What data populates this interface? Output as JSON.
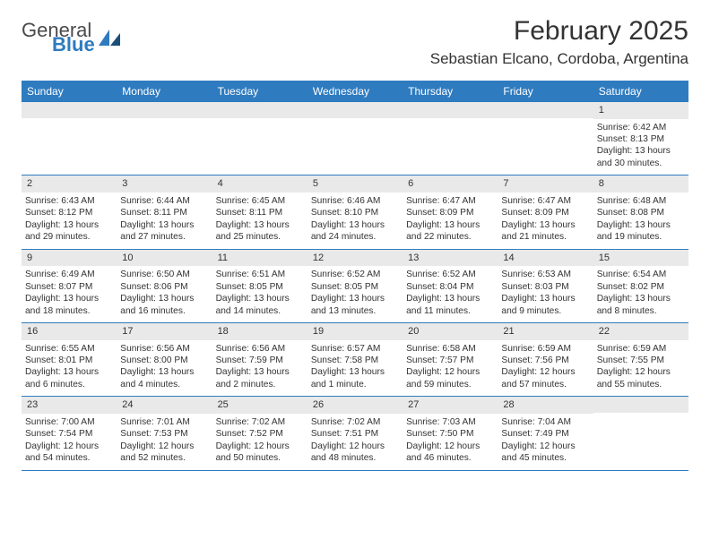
{
  "brand": {
    "general": "General",
    "blue": "Blue"
  },
  "title": "February 2025",
  "location": "Sebastian Elcano, Cordoba, Argentina",
  "colors": {
    "header_bg": "#2f7bbf",
    "header_text": "#ffffff",
    "daynum_bg": "#e9e9e9",
    "rule": "#2f7bbf",
    "text": "#333333",
    "page_bg": "#ffffff"
  },
  "day_names": [
    "Sunday",
    "Monday",
    "Tuesday",
    "Wednesday",
    "Thursday",
    "Friday",
    "Saturday"
  ],
  "weeks": [
    [
      null,
      null,
      null,
      null,
      null,
      null,
      {
        "n": "1",
        "sr": "Sunrise: 6:42 AM",
        "ss": "Sunset: 8:13 PM",
        "dl": "Daylight: 13 hours and 30 minutes."
      }
    ],
    [
      {
        "n": "2",
        "sr": "Sunrise: 6:43 AM",
        "ss": "Sunset: 8:12 PM",
        "dl": "Daylight: 13 hours and 29 minutes."
      },
      {
        "n": "3",
        "sr": "Sunrise: 6:44 AM",
        "ss": "Sunset: 8:11 PM",
        "dl": "Daylight: 13 hours and 27 minutes."
      },
      {
        "n": "4",
        "sr": "Sunrise: 6:45 AM",
        "ss": "Sunset: 8:11 PM",
        "dl": "Daylight: 13 hours and 25 minutes."
      },
      {
        "n": "5",
        "sr": "Sunrise: 6:46 AM",
        "ss": "Sunset: 8:10 PM",
        "dl": "Daylight: 13 hours and 24 minutes."
      },
      {
        "n": "6",
        "sr": "Sunrise: 6:47 AM",
        "ss": "Sunset: 8:09 PM",
        "dl": "Daylight: 13 hours and 22 minutes."
      },
      {
        "n": "7",
        "sr": "Sunrise: 6:47 AM",
        "ss": "Sunset: 8:09 PM",
        "dl": "Daylight: 13 hours and 21 minutes."
      },
      {
        "n": "8",
        "sr": "Sunrise: 6:48 AM",
        "ss": "Sunset: 8:08 PM",
        "dl": "Daylight: 13 hours and 19 minutes."
      }
    ],
    [
      {
        "n": "9",
        "sr": "Sunrise: 6:49 AM",
        "ss": "Sunset: 8:07 PM",
        "dl": "Daylight: 13 hours and 18 minutes."
      },
      {
        "n": "10",
        "sr": "Sunrise: 6:50 AM",
        "ss": "Sunset: 8:06 PM",
        "dl": "Daylight: 13 hours and 16 minutes."
      },
      {
        "n": "11",
        "sr": "Sunrise: 6:51 AM",
        "ss": "Sunset: 8:05 PM",
        "dl": "Daylight: 13 hours and 14 minutes."
      },
      {
        "n": "12",
        "sr": "Sunrise: 6:52 AM",
        "ss": "Sunset: 8:05 PM",
        "dl": "Daylight: 13 hours and 13 minutes."
      },
      {
        "n": "13",
        "sr": "Sunrise: 6:52 AM",
        "ss": "Sunset: 8:04 PM",
        "dl": "Daylight: 13 hours and 11 minutes."
      },
      {
        "n": "14",
        "sr": "Sunrise: 6:53 AM",
        "ss": "Sunset: 8:03 PM",
        "dl": "Daylight: 13 hours and 9 minutes."
      },
      {
        "n": "15",
        "sr": "Sunrise: 6:54 AM",
        "ss": "Sunset: 8:02 PM",
        "dl": "Daylight: 13 hours and 8 minutes."
      }
    ],
    [
      {
        "n": "16",
        "sr": "Sunrise: 6:55 AM",
        "ss": "Sunset: 8:01 PM",
        "dl": "Daylight: 13 hours and 6 minutes."
      },
      {
        "n": "17",
        "sr": "Sunrise: 6:56 AM",
        "ss": "Sunset: 8:00 PM",
        "dl": "Daylight: 13 hours and 4 minutes."
      },
      {
        "n": "18",
        "sr": "Sunrise: 6:56 AM",
        "ss": "Sunset: 7:59 PM",
        "dl": "Daylight: 13 hours and 2 minutes."
      },
      {
        "n": "19",
        "sr": "Sunrise: 6:57 AM",
        "ss": "Sunset: 7:58 PM",
        "dl": "Daylight: 13 hours and 1 minute."
      },
      {
        "n": "20",
        "sr": "Sunrise: 6:58 AM",
        "ss": "Sunset: 7:57 PM",
        "dl": "Daylight: 12 hours and 59 minutes."
      },
      {
        "n": "21",
        "sr": "Sunrise: 6:59 AM",
        "ss": "Sunset: 7:56 PM",
        "dl": "Daylight: 12 hours and 57 minutes."
      },
      {
        "n": "22",
        "sr": "Sunrise: 6:59 AM",
        "ss": "Sunset: 7:55 PM",
        "dl": "Daylight: 12 hours and 55 minutes."
      }
    ],
    [
      {
        "n": "23",
        "sr": "Sunrise: 7:00 AM",
        "ss": "Sunset: 7:54 PM",
        "dl": "Daylight: 12 hours and 54 minutes."
      },
      {
        "n": "24",
        "sr": "Sunrise: 7:01 AM",
        "ss": "Sunset: 7:53 PM",
        "dl": "Daylight: 12 hours and 52 minutes."
      },
      {
        "n": "25",
        "sr": "Sunrise: 7:02 AM",
        "ss": "Sunset: 7:52 PM",
        "dl": "Daylight: 12 hours and 50 minutes."
      },
      {
        "n": "26",
        "sr": "Sunrise: 7:02 AM",
        "ss": "Sunset: 7:51 PM",
        "dl": "Daylight: 12 hours and 48 minutes."
      },
      {
        "n": "27",
        "sr": "Sunrise: 7:03 AM",
        "ss": "Sunset: 7:50 PM",
        "dl": "Daylight: 12 hours and 46 minutes."
      },
      {
        "n": "28",
        "sr": "Sunrise: 7:04 AM",
        "ss": "Sunset: 7:49 PM",
        "dl": "Daylight: 12 hours and 45 minutes."
      },
      null
    ]
  ]
}
